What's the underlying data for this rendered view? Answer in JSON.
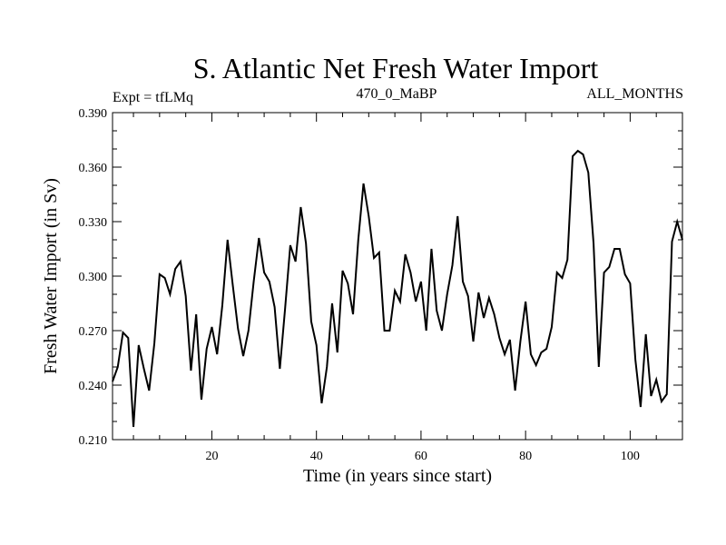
{
  "chart_data": {
    "type": "line",
    "title": "S. Atlantic Net Fresh Water Import",
    "subtitle_left": "Expt = tfLMq",
    "subtitle_center": "470_0_MaBP",
    "subtitle_right": "ALL_MONTHS",
    "xlabel": "Time (in years since start)",
    "ylabel": "Fresh Water Import (in Sv)",
    "xlim": [
      1,
      110
    ],
    "ylim": [
      0.21,
      0.39
    ],
    "x_ticks": [
      20,
      40,
      60,
      80,
      100
    ],
    "x_tick_labels": [
      "20",
      "40",
      "60",
      "80",
      "100"
    ],
    "y_ticks": [
      0.21,
      0.24,
      0.27,
      0.3,
      0.33,
      0.36,
      0.39
    ],
    "y_tick_labels": [
      "0.210",
      "0.240",
      "0.270",
      "0.300",
      "0.330",
      "0.360",
      "0.390"
    ],
    "series": [
      {
        "name": "Fresh Water Import",
        "x": [
          1,
          2,
          3,
          4,
          5,
          6,
          7,
          8,
          9,
          10,
          11,
          12,
          13,
          14,
          15,
          16,
          17,
          18,
          19,
          20,
          21,
          22,
          23,
          24,
          25,
          26,
          27,
          28,
          29,
          30,
          31,
          32,
          33,
          34,
          35,
          36,
          37,
          38,
          39,
          40,
          41,
          42,
          43,
          44,
          45,
          46,
          47,
          48,
          49,
          50,
          51,
          52,
          53,
          54,
          55,
          56,
          57,
          58,
          59,
          60,
          61,
          62,
          63,
          64,
          65,
          66,
          67,
          68,
          69,
          70,
          71,
          72,
          73,
          74,
          75,
          76,
          77,
          78,
          79,
          80,
          81,
          82,
          83,
          84,
          85,
          86,
          87,
          88,
          89,
          90,
          91,
          92,
          93,
          94,
          95,
          96,
          97,
          98,
          99,
          100,
          101,
          102,
          103,
          104,
          105,
          106,
          107,
          108,
          109,
          110
        ],
        "values": [
          0.242,
          0.25,
          0.269,
          0.266,
          0.217,
          0.262,
          0.249,
          0.237,
          0.263,
          0.301,
          0.299,
          0.29,
          0.304,
          0.308,
          0.289,
          0.248,
          0.279,
          0.232,
          0.26,
          0.272,
          0.257,
          0.284,
          0.32,
          0.295,
          0.271,
          0.256,
          0.27,
          0.297,
          0.321,
          0.302,
          0.297,
          0.283,
          0.249,
          0.282,
          0.317,
          0.308,
          0.338,
          0.318,
          0.275,
          0.262,
          0.23,
          0.25,
          0.285,
          0.258,
          0.303,
          0.296,
          0.279,
          0.32,
          0.351,
          0.333,
          0.31,
          0.313,
          0.27,
          0.27,
          0.292,
          0.286,
          0.312,
          0.302,
          0.286,
          0.297,
          0.27,
          0.315,
          0.281,
          0.27,
          0.29,
          0.306,
          0.333,
          0.297,
          0.289,
          0.264,
          0.291,
          0.277,
          0.288,
          0.279,
          0.266,
          0.257,
          0.265,
          0.237,
          0.264,
          0.286,
          0.257,
          0.251,
          0.258,
          0.26,
          0.272,
          0.302,
          0.299,
          0.309,
          0.366,
          0.369,
          0.367,
          0.357,
          0.318,
          0.25,
          0.302,
          0.305,
          0.315,
          0.315,
          0.301,
          0.296,
          0.254,
          0.228,
          0.268,
          0.234,
          0.243,
          0.231,
          0.235,
          0.319,
          0.33,
          0.32
        ]
      }
    ]
  }
}
